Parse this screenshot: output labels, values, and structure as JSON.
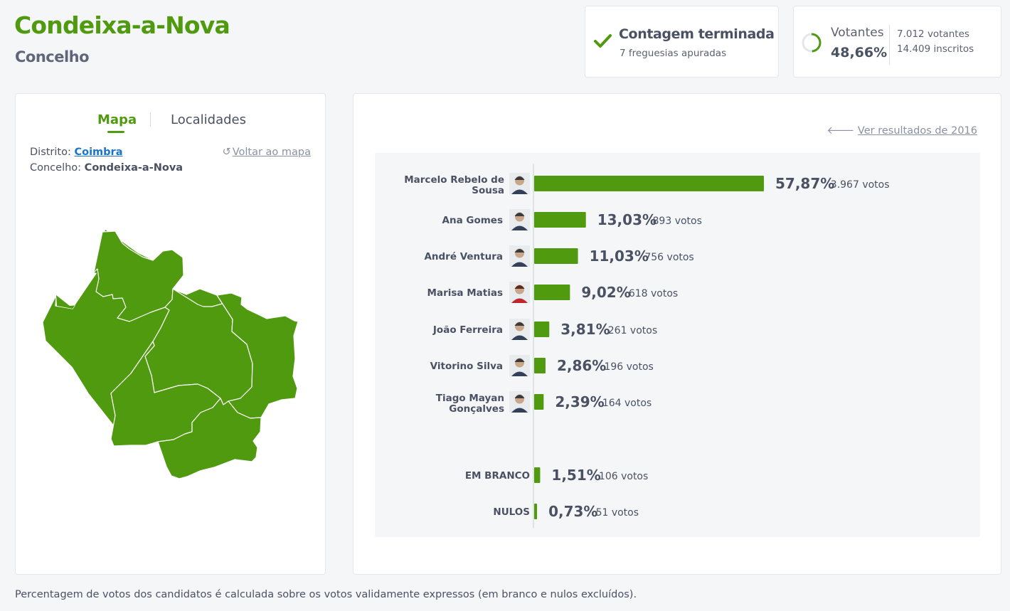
{
  "header": {
    "title": "Condeixa-a-Nova",
    "subtitle": "Concelho"
  },
  "status": {
    "title": "Contagem terminada",
    "subtitle": "7 freguesias apuradas"
  },
  "turnout": {
    "label": "Votantes",
    "percent": "48,66%",
    "fraction": 0.4866,
    "voters": "7.012 votantes",
    "registered": "14.409 inscritos"
  },
  "map_panel": {
    "tabs": [
      "Mapa",
      "Localidades"
    ],
    "district_label": "Distrito:",
    "district_value": "Coimbra",
    "county_label": "Concelho:",
    "county_value": "Condeixa-a-Nova",
    "back_label": "Voltar ao mapa",
    "map_color": "#4f9a0f"
  },
  "results": {
    "previous_link": "Ver resultados de 2016",
    "accent": "#4f9a0f"
  },
  "chart_data": {
    "type": "bar",
    "orientation": "horizontal",
    "categories": [
      "Marcelo Rebelo de Sousa",
      "Ana Gomes",
      "André Ventura",
      "Marisa Matias",
      "João Ferreira",
      "Vitorino Silva",
      "Tiago Mayan Gonçalves"
    ],
    "values": [
      57.87,
      13.03,
      11.03,
      9.02,
      3.81,
      2.86,
      2.39
    ],
    "value_labels": [
      "57,87%",
      "13,03%",
      "11,03%",
      "9,02%",
      "3,81%",
      "2,86%",
      "2,39%"
    ],
    "votes": [
      "3.967 votos",
      "893 votos",
      "756 votos",
      "618 votos",
      "261 votos",
      "196 votos",
      "164 votos"
    ],
    "extra_categories": [
      "EM BRANCO",
      "NULOS"
    ],
    "extra_values": [
      1.51,
      0.73
    ],
    "extra_value_labels": [
      "1,51%",
      "0,73%"
    ],
    "extra_votes": [
      "106 votos",
      "51 votos"
    ],
    "xlim": [
      0,
      57.87
    ]
  },
  "footnote": "Percentagem de votos dos candidatos é calculada sobre os votos validamente expressos (em branco e nulos excluídos)."
}
